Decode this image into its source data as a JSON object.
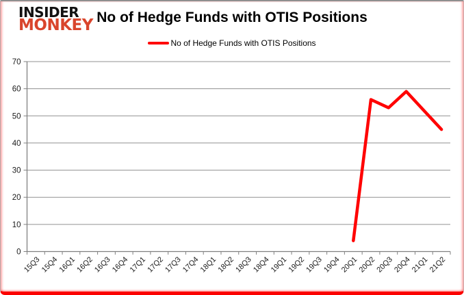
{
  "header": {
    "logo_line1": "INSIDER",
    "logo_line2": "MONKEY",
    "title": "No of Hedge Funds with OTIS Positions"
  },
  "legend": {
    "label": "No of Hedge Funds with OTIS Positions"
  },
  "colors": {
    "series_red": "#ff0000",
    "logo_red": "#d9452c",
    "logo_black": "#111111",
    "grid": "#909090",
    "axis": "#808080",
    "label_text": "#1a1a1a",
    "frame_bottom_red": "#fb0200",
    "frame_top_gray": "#8f8f8f"
  },
  "chart_data": {
    "type": "line",
    "title": "No of Hedge Funds with OTIS Positions",
    "xlabel": "",
    "ylabel": "",
    "ylim": [
      0,
      70
    ],
    "yticks": [
      0,
      10,
      20,
      30,
      40,
      50,
      60,
      70
    ],
    "grid": true,
    "legend_position": "top",
    "categories": [
      "15Q3",
      "15Q4",
      "16Q1",
      "16Q2",
      "16Q3",
      "16Q4",
      "17Q1",
      "17Q2",
      "17Q3",
      "17Q4",
      "18Q1",
      "18Q2",
      "18Q3",
      "18Q4",
      "19Q1",
      "19Q2",
      "19Q3",
      "19Q4",
      "20Q1",
      "20Q2",
      "20Q3",
      "20Q4",
      "21Q1",
      "21Q2"
    ],
    "series": [
      {
        "name": "No of Hedge Funds with OTIS Positions",
        "color": "#ff0000",
        "values": [
          null,
          null,
          null,
          null,
          null,
          null,
          null,
          null,
          null,
          null,
          null,
          null,
          null,
          null,
          null,
          null,
          null,
          null,
          4,
          56,
          53,
          59,
          52,
          45
        ]
      }
    ]
  }
}
